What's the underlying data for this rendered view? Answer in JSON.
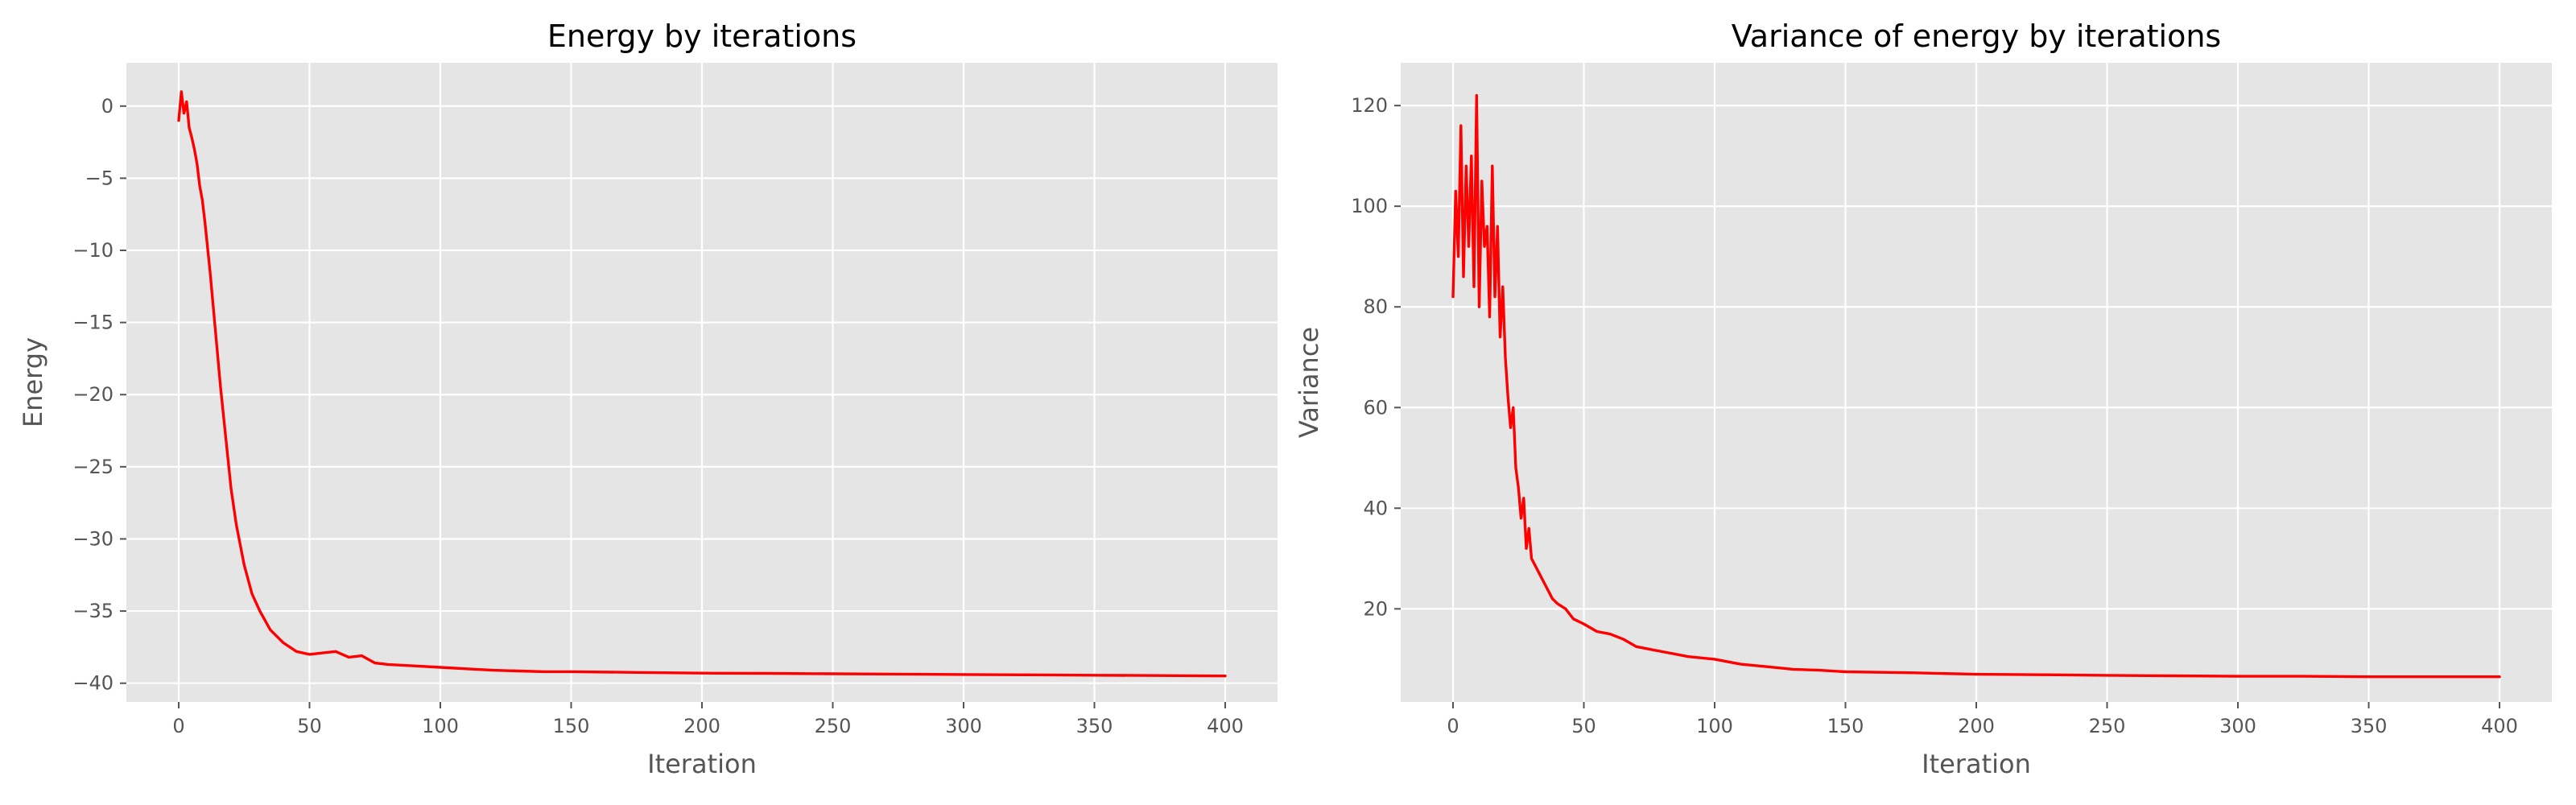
{
  "chart_data": [
    {
      "type": "line",
      "title": "Energy by iterations",
      "xlabel": "Iteration",
      "ylabel": "Energy",
      "xlim": [
        -20,
        420
      ],
      "ylim": [
        -41.3,
        3
      ],
      "xticks": [
        0,
        50,
        100,
        150,
        200,
        250,
        300,
        350,
        400
      ],
      "yticks": [
        0,
        -5,
        -10,
        -15,
        -20,
        -25,
        -30,
        -35,
        -40
      ],
      "grid": true,
      "series": [
        {
          "color": "#ff0000",
          "x": [
            0,
            1,
            2,
            3,
            4,
            5,
            6,
            7,
            8,
            9,
            10,
            12,
            14,
            16,
            18,
            20,
            22,
            25,
            28,
            31,
            35,
            40,
            45,
            50,
            55,
            60,
            65,
            70,
            75,
            80,
            90,
            100,
            110,
            120,
            130,
            140,
            150,
            175,
            200,
            225,
            250,
            275,
            300,
            325,
            350,
            375,
            400
          ],
          "values": [
            -1.0,
            1.0,
            -0.5,
            0.3,
            -1.5,
            -2.2,
            -3.0,
            -4.0,
            -5.5,
            -6.5,
            -8.0,
            -11.5,
            -15.5,
            -19.5,
            -23.0,
            -26.5,
            -29.0,
            -31.8,
            -33.8,
            -35.0,
            -36.3,
            -37.2,
            -37.8,
            -38.0,
            -37.9,
            -37.8,
            -38.2,
            -38.1,
            -38.6,
            -38.7,
            -38.8,
            -38.9,
            -39.0,
            -39.1,
            -39.15,
            -39.2,
            -39.2,
            -39.25,
            -39.3,
            -39.32,
            -39.35,
            -39.37,
            -39.4,
            -39.42,
            -39.45,
            -39.47,
            -39.5
          ]
        }
      ]
    },
    {
      "type": "line",
      "title": "Variance of energy by iterations",
      "xlabel": "Iteration",
      "ylabel": "Variance",
      "xlim": [
        -20,
        420
      ],
      "ylim": [
        1.5,
        128.5
      ],
      "xticks": [
        0,
        50,
        100,
        150,
        200,
        250,
        300,
        350,
        400
      ],
      "yticks": [
        20,
        40,
        60,
        80,
        100,
        120
      ],
      "grid": true,
      "series": [
        {
          "color": "#ff0000",
          "x": [
            0,
            1,
            2,
            3,
            4,
            5,
            6,
            7,
            8,
            9,
            10,
            11,
            12,
            13,
            14,
            15,
            16,
            17,
            18,
            19,
            20,
            21,
            22,
            23,
            24,
            25,
            26,
            27,
            28,
            29,
            30,
            32,
            34,
            36,
            38,
            40,
            43,
            46,
            50,
            55,
            60,
            65,
            70,
            75,
            80,
            90,
            100,
            110,
            120,
            130,
            140,
            150,
            175,
            200,
            225,
            250,
            275,
            300,
            325,
            350,
            375,
            400
          ],
          "values": [
            82,
            103,
            90,
            116,
            86,
            108,
            92,
            110,
            84,
            122,
            80,
            105,
            92,
            96,
            78,
            108,
            82,
            96,
            74,
            84,
            70,
            62,
            56,
            60,
            48,
            44,
            38,
            42,
            32,
            36,
            30,
            28,
            26,
            24,
            22,
            21,
            20,
            18,
            17,
            15.5,
            15,
            14,
            12.5,
            12,
            11.5,
            10.5,
            10,
            9,
            8.5,
            8,
            7.8,
            7.5,
            7.3,
            7.0,
            6.9,
            6.8,
            6.7,
            6.6,
            6.6,
            6.5,
            6.5,
            6.5
          ]
        }
      ]
    }
  ]
}
